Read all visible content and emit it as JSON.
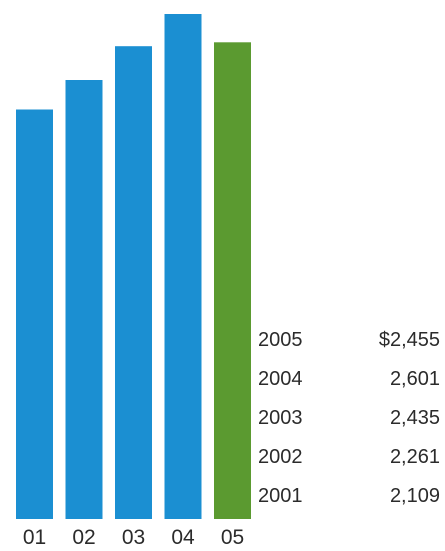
{
  "chart_data": {
    "type": "bar",
    "categories": [
      "01",
      "02",
      "03",
      "04",
      "05"
    ],
    "values": [
      2109,
      2261,
      2435,
      2601,
      2455
    ],
    "colors": [
      "#1b8fd2",
      "#1b8fd2",
      "#1b8fd2",
      "#1b8fd2",
      "#5b9a30"
    ],
    "highlight_index": 4,
    "ylim": [
      0,
      2601
    ],
    "grid": false,
    "legend": "none",
    "title": "",
    "xlabel": "",
    "ylabel": "",
    "table": {
      "rows": [
        {
          "year": "2005",
          "value": "$2,455"
        },
        {
          "year": "2004",
          "value": "2,601"
        },
        {
          "year": "2003",
          "value": "2,435"
        },
        {
          "year": "2002",
          "value": "2,261"
        },
        {
          "year": "2001",
          "value": "2,109"
        }
      ]
    }
  }
}
